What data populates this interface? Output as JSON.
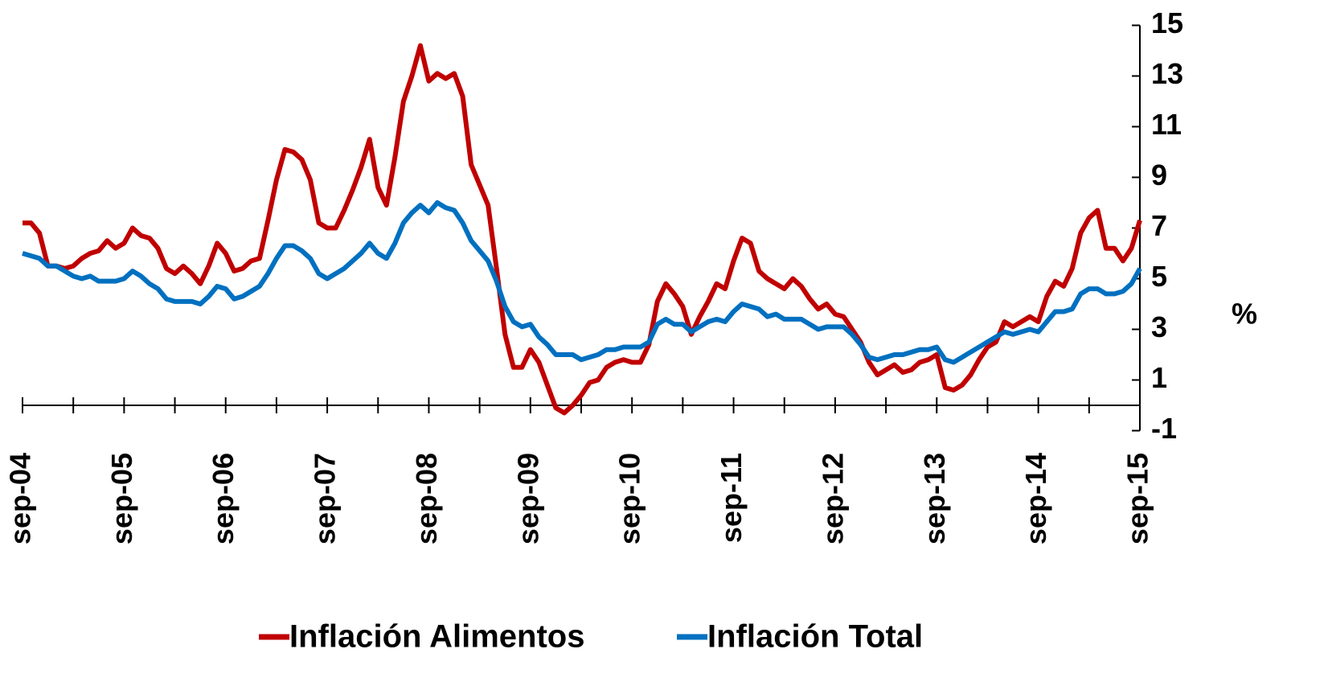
{
  "chart_data": {
    "type": "line",
    "ylabel": "%",
    "categories": [
      "sep-04",
      null,
      null,
      null,
      null,
      null,
      null,
      null,
      null,
      null,
      null,
      null,
      "sep-05",
      null,
      null,
      null,
      null,
      null,
      null,
      null,
      null,
      null,
      null,
      null,
      "sep-06",
      null,
      null,
      null,
      null,
      null,
      null,
      null,
      null,
      null,
      null,
      null,
      "sep-07",
      null,
      null,
      null,
      null,
      null,
      null,
      null,
      null,
      null,
      null,
      null,
      "sep-08",
      null,
      null,
      null,
      null,
      null,
      null,
      null,
      null,
      null,
      null,
      null,
      "sep-09",
      null,
      null,
      null,
      null,
      null,
      null,
      null,
      null,
      null,
      null,
      null,
      "sep-10",
      null,
      null,
      null,
      null,
      null,
      null,
      null,
      null,
      null,
      null,
      null,
      "sep-11",
      null,
      null,
      null,
      null,
      null,
      null,
      null,
      null,
      null,
      null,
      null,
      "sep-12",
      null,
      null,
      null,
      null,
      null,
      null,
      null,
      null,
      null,
      null,
      null,
      "sep-13",
      null,
      null,
      null,
      null,
      null,
      null,
      null,
      null,
      null,
      null,
      null,
      "sep-14",
      null,
      null,
      null,
      null,
      null,
      null,
      null,
      null,
      null,
      null,
      null,
      "sep-15"
    ],
    "series": [
      {
        "name": "Inflación Alimentos",
        "color": "#c00000",
        "values": [
          7.2,
          7.2,
          6.8,
          5.5,
          5.5,
          5.4,
          5.5,
          5.8,
          6.0,
          6.1,
          6.5,
          6.2,
          6.4,
          7.0,
          6.7,
          6.6,
          6.2,
          5.4,
          5.2,
          5.5,
          5.2,
          4.8,
          5.5,
          6.4,
          6.0,
          5.3,
          5.4,
          5.7,
          5.8,
          7.3,
          8.9,
          10.1,
          10.0,
          9.7,
          8.9,
          7.2,
          7.0,
          7.0,
          7.7,
          8.5,
          9.4,
          10.5,
          8.6,
          7.9,
          9.8,
          12.0,
          13.0,
          14.2,
          12.8,
          13.1,
          12.9,
          13.1,
          12.2,
          9.5,
          8.7,
          7.9,
          5.4,
          2.8,
          1.5,
          1.5,
          2.2,
          1.7,
          0.8,
          -0.1,
          -0.3,
          0.0,
          0.4,
          0.9,
          1.0,
          1.5,
          1.7,
          1.8,
          1.7,
          1.7,
          2.4,
          4.1,
          4.8,
          4.4,
          3.9,
          2.8,
          3.5,
          4.1,
          4.8,
          4.6,
          5.7,
          6.6,
          6.4,
          5.3,
          5.0,
          4.8,
          4.6,
          5.0,
          4.7,
          4.2,
          3.8,
          4.0,
          3.6,
          3.5,
          3.0,
          2.5,
          1.7,
          1.2,
          1.4,
          1.6,
          1.3,
          1.4,
          1.7,
          1.8,
          2.0,
          0.7,
          0.6,
          0.8,
          1.2,
          1.8,
          2.3,
          2.5,
          3.3,
          3.1,
          3.3,
          3.5,
          3.3,
          4.3,
          4.9,
          4.7,
          5.4,
          6.8,
          7.4,
          7.7,
          6.2,
          6.2,
          5.7,
          6.2,
          7.3
        ]
      },
      {
        "name": "Inflación Total",
        "color": "#0070c0",
        "values": [
          6.0,
          5.9,
          5.8,
          5.5,
          5.5,
          5.3,
          5.1,
          5.0,
          5.1,
          4.9,
          4.9,
          4.9,
          5.0,
          5.3,
          5.1,
          4.8,
          4.6,
          4.2,
          4.1,
          4.1,
          4.1,
          4.0,
          4.3,
          4.7,
          4.6,
          4.2,
          4.3,
          4.5,
          4.7,
          5.2,
          5.8,
          6.3,
          6.3,
          6.1,
          5.8,
          5.2,
          5.0,
          5.2,
          5.4,
          5.7,
          6.0,
          6.4,
          6.0,
          5.8,
          6.4,
          7.2,
          7.6,
          7.9,
          7.6,
          8.0,
          7.8,
          7.7,
          7.2,
          6.5,
          6.1,
          5.7,
          4.9,
          3.9,
          3.3,
          3.1,
          3.2,
          2.7,
          2.4,
          2.0,
          2.0,
          2.0,
          1.8,
          1.9,
          2.0,
          2.2,
          2.2,
          2.3,
          2.3,
          2.3,
          2.5,
          3.2,
          3.4,
          3.2,
          3.2,
          2.9,
          3.1,
          3.3,
          3.4,
          3.3,
          3.7,
          4.0,
          3.9,
          3.8,
          3.5,
          3.6,
          3.4,
          3.4,
          3.4,
          3.2,
          3.0,
          3.1,
          3.1,
          3.1,
          2.8,
          2.4,
          1.9,
          1.8,
          1.9,
          2.0,
          2.0,
          2.1,
          2.2,
          2.2,
          2.3,
          1.8,
          1.7,
          1.9,
          2.1,
          2.3,
          2.5,
          2.7,
          2.9,
          2.8,
          2.9,
          3.0,
          2.9,
          3.3,
          3.7,
          3.7,
          3.8,
          4.4,
          4.6,
          4.6,
          4.4,
          4.4,
          4.5,
          4.8,
          5.4
        ]
      }
    ],
    "ylim": [
      -1,
      15
    ],
    "yticks": [
      -1,
      1,
      3,
      5,
      7,
      9,
      11,
      13,
      15
    ],
    "legend": "bottom"
  }
}
